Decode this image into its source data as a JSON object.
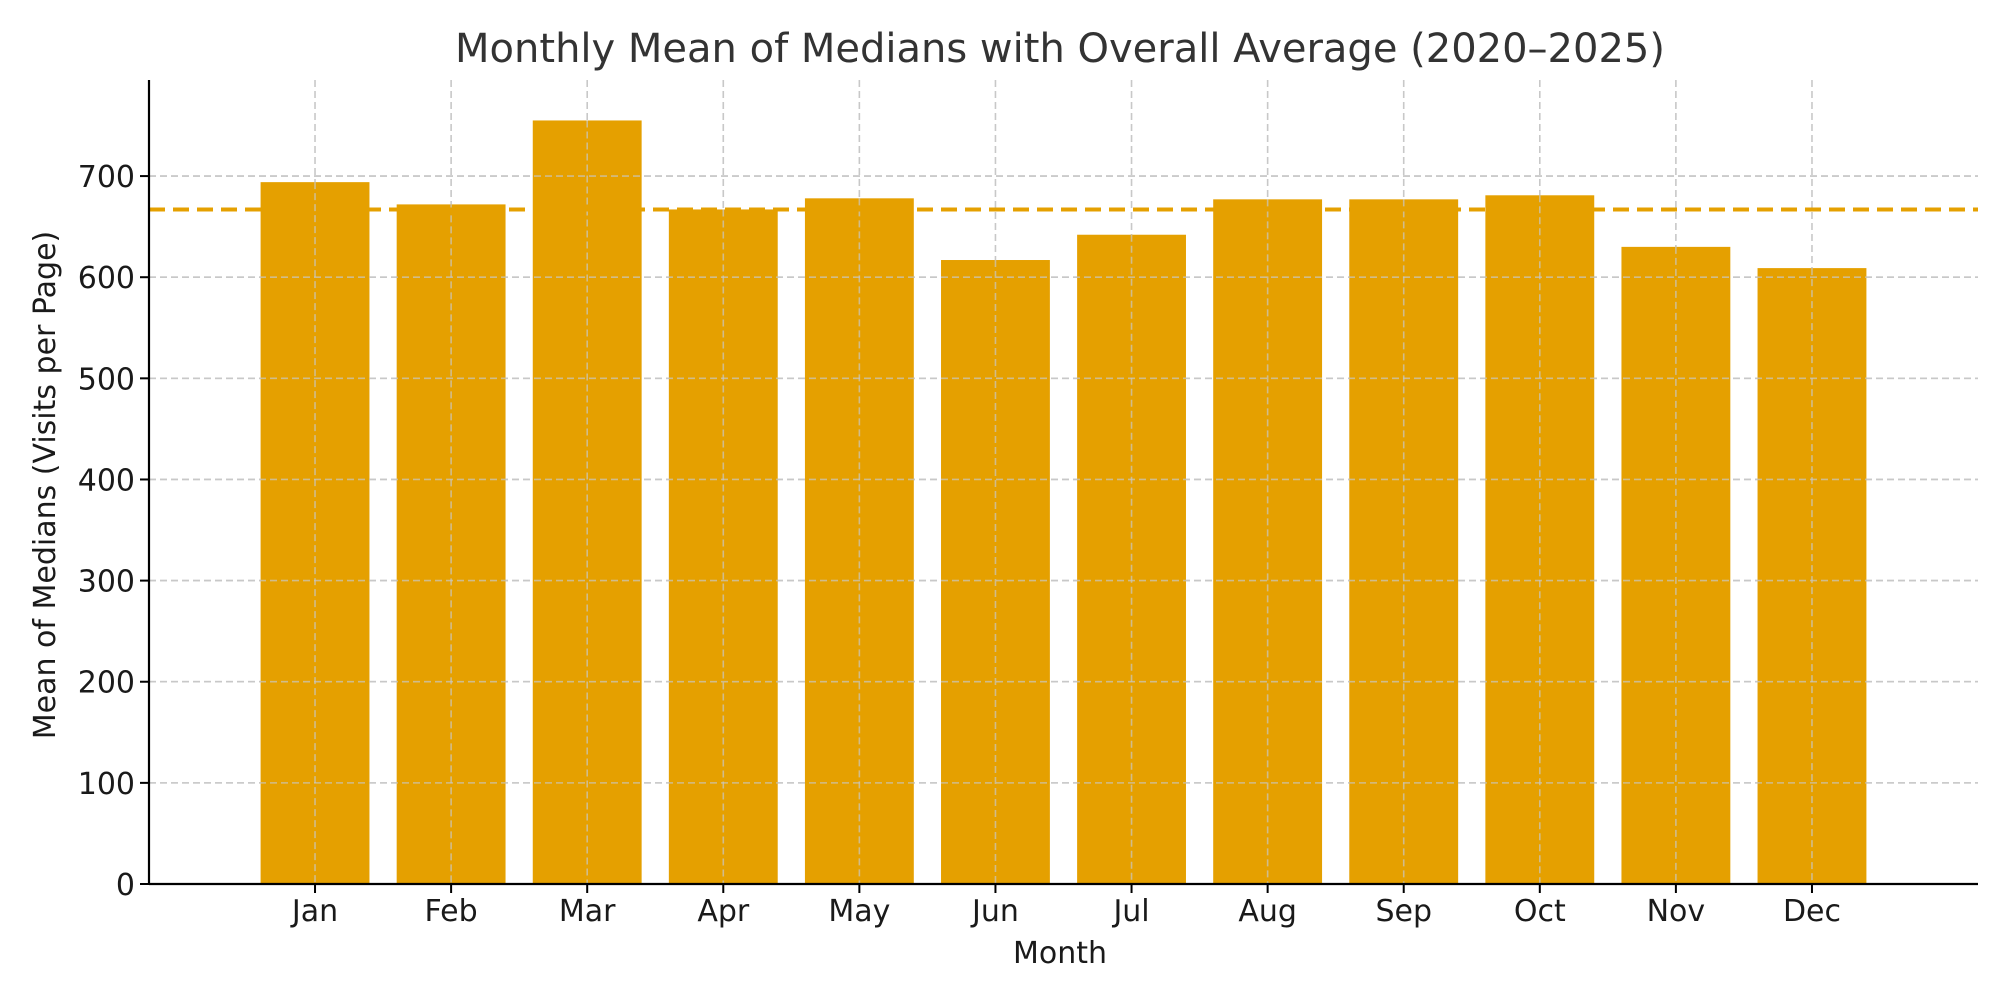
{
  "chart_data": {
    "type": "bar",
    "title": "Monthly Mean of Medians with Overall Average (2020–2025)",
    "xlabel": "Month",
    "ylabel": "Mean of Medians (Visits per Page)",
    "categories": [
      "Jan",
      "Feb",
      "Mar",
      "Apr",
      "May",
      "Jun",
      "Jul",
      "Aug",
      "Sep",
      "Oct",
      "Nov",
      "Dec"
    ],
    "values": [
      694,
      672,
      755,
      667,
      678,
      617,
      642,
      677,
      677,
      681,
      630,
      609
    ],
    "overall_average": 667,
    "ylim": [
      0,
      795
    ],
    "yticks": [
      0,
      100,
      200,
      300,
      400,
      500,
      600,
      700
    ],
    "grid": true,
    "bar_color": "#E5A000",
    "average_line_color": "#E5A000",
    "average_line_style": "dashed"
  }
}
